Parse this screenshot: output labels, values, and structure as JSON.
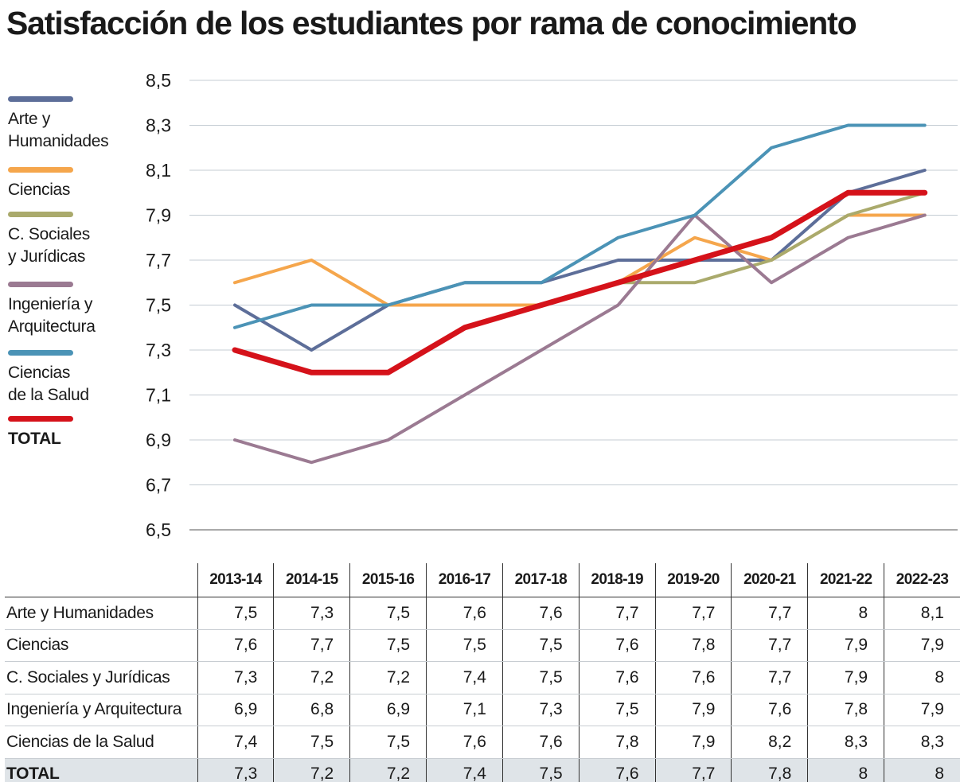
{
  "title": "Satisfacción de los estudiantes por rama de conocimiento",
  "chart_data": {
    "type": "line",
    "title": "Satisfacción de los estudiantes por rama de conocimiento",
    "categories": [
      "2013-14",
      "2014-15",
      "2015-16",
      "2016-17",
      "2017-18",
      "2018-19",
      "2019-20",
      "2020-21",
      "2021-22",
      "2022-23"
    ],
    "ylim": [
      6.5,
      8.5
    ],
    "yticks": [
      "8,5",
      "8,3",
      "8,1",
      "7,9",
      "7,7",
      "7,5",
      "7,3",
      "7,1",
      "6,9",
      "6,7",
      "6,5"
    ],
    "grid": true,
    "legend_placement": "left",
    "series": [
      {
        "name": "Arte y Humanidades",
        "legend": [
          "Arte y",
          "Humanidades"
        ],
        "color": "#5d6e99",
        "values": [
          7.5,
          7.3,
          7.5,
          7.6,
          7.6,
          7.7,
          7.7,
          7.7,
          8,
          8.1
        ]
      },
      {
        "name": "Ciencias",
        "legend": [
          "Ciencias"
        ],
        "color": "#f5a64c",
        "values": [
          7.6,
          7.7,
          7.5,
          7.5,
          7.5,
          7.6,
          7.8,
          7.7,
          7.9,
          7.9
        ]
      },
      {
        "name": "C. Sociales y Jurídicas",
        "legend": [
          "C. Sociales",
          "y Jurídicas"
        ],
        "color": "#aaaa6c",
        "values": [
          7.3,
          7.2,
          7.2,
          7.4,
          7.5,
          7.6,
          7.6,
          7.7,
          7.9,
          8
        ]
      },
      {
        "name": "Ingeniería y Arquitectura",
        "legend": [
          "Ingeniería y",
          "Arquitectura"
        ],
        "color": "#9b7a92",
        "values": [
          6.9,
          6.8,
          6.9,
          7.1,
          7.3,
          7.5,
          7.9,
          7.6,
          7.8,
          7.9
        ]
      },
      {
        "name": "Ciencias de la Salud",
        "legend": [
          "Ciencias",
          "de la Salud"
        ],
        "color": "#4b93b6",
        "values": [
          7.4,
          7.5,
          7.5,
          7.6,
          7.6,
          7.8,
          7.9,
          8.2,
          8.3,
          8.3
        ]
      },
      {
        "name": "TOTAL",
        "legend": [
          "TOTAL"
        ],
        "color": "#d5121a",
        "values": [
          7.3,
          7.2,
          7.2,
          7.4,
          7.5,
          7.6,
          7.7,
          7.8,
          8,
          8
        ]
      }
    ]
  }
}
